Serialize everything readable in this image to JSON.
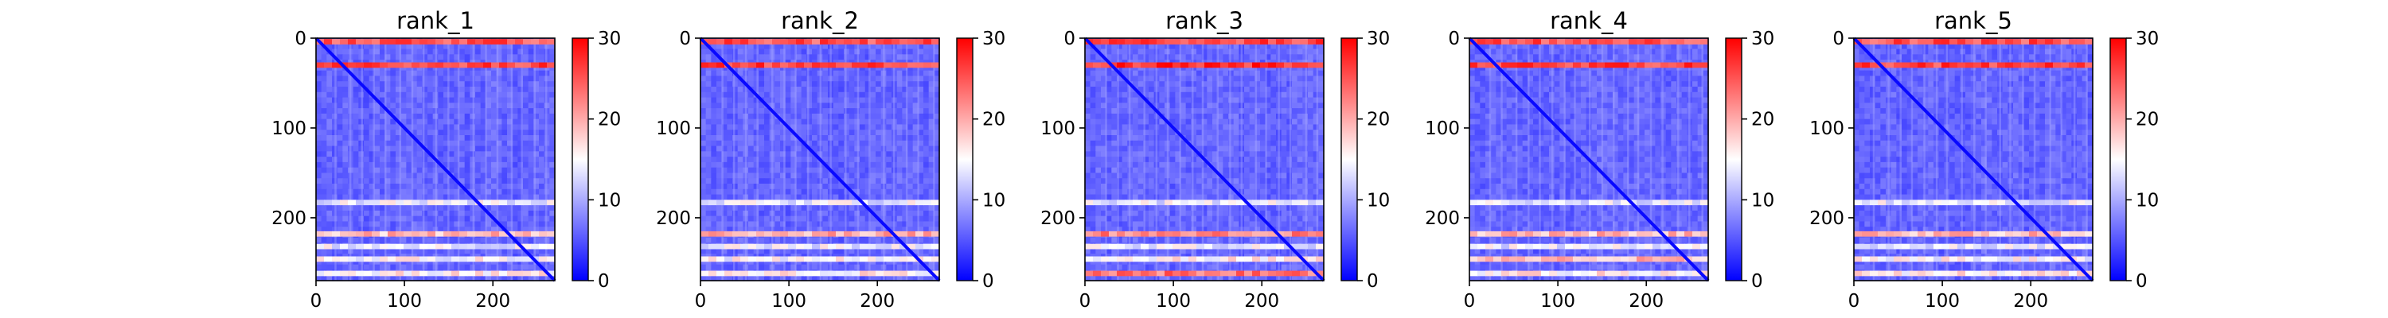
{
  "chart_data": [
    {
      "type": "heatmap",
      "title": "rank_1",
      "xticks": [
        0,
        100,
        200
      ],
      "yticks": [
        0,
        100,
        200
      ],
      "xlim": [
        0,
        270
      ],
      "ylim": [
        270,
        0
      ],
      "n": 270,
      "colorbar": {
        "min": 0,
        "max": 30,
        "ticks": [
          0,
          10,
          20,
          30
        ],
        "colormap": "bwr"
      },
      "stripes": [
        {
          "pos": 4,
          "value": 26
        },
        {
          "pos": 30,
          "value": 27
        },
        {
          "pos": 183,
          "value": 15
        },
        {
          "pos": 218,
          "value": 20
        },
        {
          "pos": 232,
          "value": 15
        },
        {
          "pos": 246,
          "value": 16
        },
        {
          "pos": 262,
          "value": 17
        }
      ]
    },
    {
      "type": "heatmap",
      "title": "rank_2",
      "xticks": [
        0,
        100,
        200
      ],
      "yticks": [
        0,
        100,
        200
      ],
      "xlim": [
        0,
        270
      ],
      "ylim": [
        270,
        0
      ],
      "n": 270,
      "colorbar": {
        "min": 0,
        "max": 30,
        "ticks": [
          0,
          10,
          20,
          30
        ],
        "colormap": "bwr"
      },
      "stripes": [
        {
          "pos": 4,
          "value": 26
        },
        {
          "pos": 30,
          "value": 27
        },
        {
          "pos": 183,
          "value": 15
        },
        {
          "pos": 218,
          "value": 21
        },
        {
          "pos": 232,
          "value": 15
        },
        {
          "pos": 246,
          "value": 16
        },
        {
          "pos": 262,
          "value": 17
        }
      ]
    },
    {
      "type": "heatmap",
      "title": "rank_3",
      "xticks": [
        0,
        100,
        200
      ],
      "yticks": [
        0,
        100,
        200
      ],
      "xlim": [
        0,
        270
      ],
      "ylim": [
        270,
        0
      ],
      "n": 270,
      "colorbar": {
        "min": 0,
        "max": 30,
        "ticks": [
          0,
          10,
          20,
          30
        ],
        "colormap": "bwr"
      },
      "stripes": [
        {
          "pos": 4,
          "value": 27
        },
        {
          "pos": 30,
          "value": 28
        },
        {
          "pos": 183,
          "value": 15
        },
        {
          "pos": 218,
          "value": 23
        },
        {
          "pos": 232,
          "value": 15
        },
        {
          "pos": 246,
          "value": 17
        },
        {
          "pos": 262,
          "value": 24
        }
      ]
    },
    {
      "type": "heatmap",
      "title": "rank_4",
      "xticks": [
        0,
        100,
        200
      ],
      "yticks": [
        0,
        100,
        200
      ],
      "xlim": [
        0,
        270
      ],
      "ylim": [
        270,
        0
      ],
      "n": 270,
      "colorbar": {
        "min": 0,
        "max": 30,
        "ticks": [
          0,
          10,
          20,
          30
        ],
        "colormap": "bwr"
      },
      "stripes": [
        {
          "pos": 4,
          "value": 26
        },
        {
          "pos": 30,
          "value": 27
        },
        {
          "pos": 183,
          "value": 15
        },
        {
          "pos": 218,
          "value": 20
        },
        {
          "pos": 232,
          "value": 15
        },
        {
          "pos": 246,
          "value": 20
        },
        {
          "pos": 262,
          "value": 17
        }
      ]
    },
    {
      "type": "heatmap",
      "title": "rank_5",
      "xticks": [
        0,
        100,
        200
      ],
      "yticks": [
        0,
        100,
        200
      ],
      "xlim": [
        0,
        270
      ],
      "ylim": [
        270,
        0
      ],
      "n": 270,
      "colorbar": {
        "min": 0,
        "max": 30,
        "ticks": [
          0,
          10,
          20,
          30
        ],
        "colormap": "bwr"
      },
      "stripes": [
        {
          "pos": 4,
          "value": 26
        },
        {
          "pos": 30,
          "value": 27
        },
        {
          "pos": 183,
          "value": 15
        },
        {
          "pos": 218,
          "value": 20
        },
        {
          "pos": 232,
          "value": 15
        },
        {
          "pos": 246,
          "value": 16
        },
        {
          "pos": 262,
          "value": 17
        }
      ]
    }
  ],
  "colors": {
    "low": "#0000ff",
    "mid": "#ffffff",
    "high": "#ff0000"
  }
}
